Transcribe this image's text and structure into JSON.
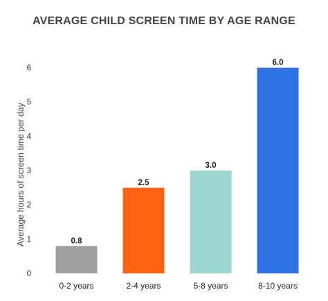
{
  "chart_data": {
    "type": "bar",
    "title": "AVERAGE CHILD SCREEN TIME BY AGE RANGE",
    "xlabel": "",
    "ylabel": "Average hours of screen time per day",
    "categories": [
      "0-2 years",
      "2-4 years",
      "5-8 years",
      "8-10 years"
    ],
    "values": [
      0.8,
      2.5,
      3.0,
      6.0
    ],
    "data_labels": [
      "0.8",
      "2.5",
      "3.0",
      "6.0"
    ],
    "colors": [
      "#a0a0a0",
      "#ff6311",
      "#9dd7d1",
      "#2e73e6"
    ],
    "ylim": [
      0,
      6
    ],
    "yticks": [
      0,
      1,
      2,
      3,
      4,
      5,
      6
    ],
    "grid": false,
    "legend": "none"
  }
}
